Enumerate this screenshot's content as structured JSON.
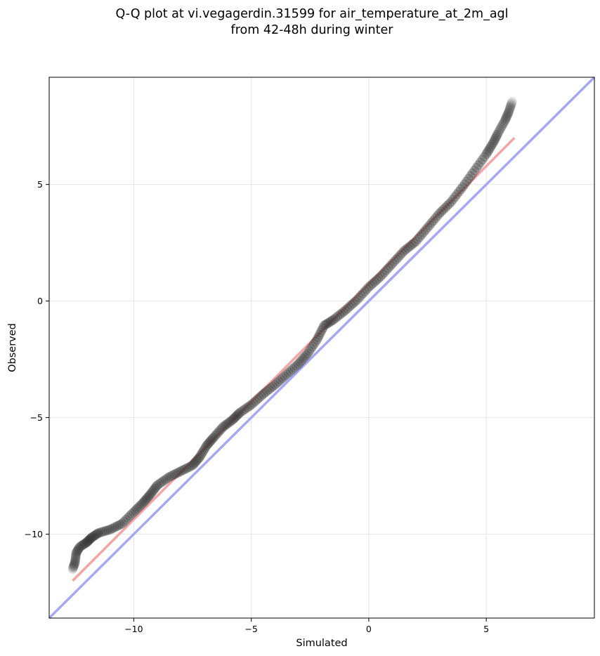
{
  "chart_data": {
    "type": "scatter",
    "title": [
      "Q-Q plot at vi.vegagerdin.31599 for air_temperature_at_2m_agl",
      "from 42-48h during winter"
    ],
    "xlabel": "Simulated",
    "ylabel": "Observed",
    "xlim": [
      -13.6,
      9.6
    ],
    "ylim": [
      -13.6,
      9.6
    ],
    "xticks": [
      -10,
      -5,
      0,
      5
    ],
    "yticks": [
      -10,
      -5,
      0,
      5
    ],
    "xtick_labels": [
      "−10",
      "−5",
      "0",
      "5"
    ],
    "ytick_labels": [
      "−10",
      "−5",
      "0",
      "5"
    ],
    "grid": true,
    "quantile_curve": [
      [
        -12.6,
        -11.5
      ],
      [
        -12.5,
        -11.2
      ],
      [
        -12.45,
        -10.8
      ],
      [
        -12.3,
        -10.55
      ],
      [
        -12.0,
        -10.35
      ],
      [
        -11.8,
        -10.15
      ],
      [
        -11.5,
        -9.95
      ],
      [
        -11.0,
        -9.8
      ],
      [
        -10.5,
        -9.55
      ],
      [
        -10.0,
        -9.05
      ],
      [
        -9.6,
        -8.65
      ],
      [
        -9.3,
        -8.3
      ],
      [
        -9.0,
        -7.9
      ],
      [
        -8.5,
        -7.55
      ],
      [
        -8.0,
        -7.3
      ],
      [
        -7.5,
        -7.05
      ],
      [
        -7.2,
        -6.7
      ],
      [
        -6.9,
        -6.2
      ],
      [
        -6.6,
        -5.85
      ],
      [
        -6.2,
        -5.4
      ],
      [
        -5.8,
        -5.1
      ],
      [
        -5.5,
        -4.8
      ],
      [
        -5.0,
        -4.45
      ],
      [
        -4.5,
        -4.0
      ],
      [
        -4.0,
        -3.6
      ],
      [
        -3.5,
        -3.15
      ],
      [
        -3.0,
        -2.7
      ],
      [
        -2.6,
        -2.25
      ],
      [
        -2.2,
        -1.65
      ],
      [
        -1.9,
        -1.05
      ],
      [
        -1.5,
        -0.8
      ],
      [
        -1.0,
        -0.4
      ],
      [
        -0.5,
        0.05
      ],
      [
        0.0,
        0.6
      ],
      [
        0.5,
        1.05
      ],
      [
        1.0,
        1.6
      ],
      [
        1.5,
        2.15
      ],
      [
        2.0,
        2.55
      ],
      [
        2.5,
        3.15
      ],
      [
        3.0,
        3.75
      ],
      [
        3.5,
        4.25
      ],
      [
        4.0,
        4.9
      ],
      [
        4.5,
        5.6
      ],
      [
        5.0,
        6.3
      ],
      [
        5.3,
        6.8
      ],
      [
        5.55,
        7.3
      ],
      [
        5.8,
        7.75
      ],
      [
        5.95,
        8.1
      ],
      [
        6.1,
        8.55
      ]
    ],
    "fit_line": {
      "x": [
        -12.6,
        6.2
      ],
      "y": [
        -12.0,
        7.0
      ],
      "color": "#f4a5a5"
    },
    "identity_line": {
      "x": [
        -13.6,
        9.6
      ],
      "y": [
        -13.6,
        9.6
      ],
      "color": "#a7a7f2"
    },
    "point_color": "#333333",
    "point_alpha_edges": "lighter at extremes"
  }
}
